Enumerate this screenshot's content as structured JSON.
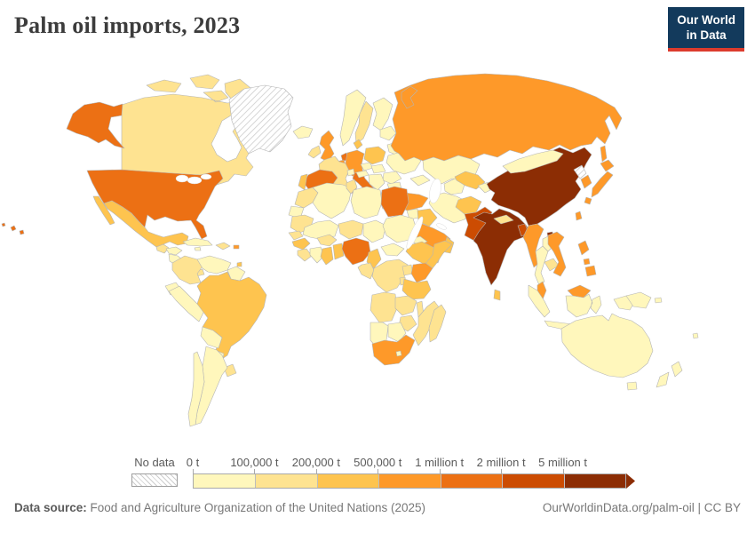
{
  "header": {
    "title": "Palm oil imports, 2023",
    "logo": {
      "line1": "Our World",
      "line2": "in Data",
      "bg": "#133a5c",
      "accent": "#dc3b2d"
    }
  },
  "legend": {
    "no_data_label": "No data",
    "tick_labels": [
      "0 t",
      "100,000 t",
      "200,000 t",
      "500,000 t",
      "1 million t",
      "2 million t",
      "5 million t"
    ],
    "colors": [
      "#fff7bc",
      "#fee391",
      "#fec44f",
      "#fe9929",
      "#ec7014",
      "#cc4c02",
      "#8c2d04"
    ]
  },
  "footer": {
    "source_label": "Data source:",
    "source_text": " Food and Agriculture Organization of the United Nations (2025)",
    "link_text": "OurWorldinData.org/palm-oil | CC BY"
  },
  "chart_data": {
    "type": "heatmap",
    "subtype": "choropleth-world-map",
    "title": "Palm oil imports, 2023",
    "unit": "tonnes",
    "legend_position": "bottom",
    "bins": [
      {
        "range": "0 – 100,000 t",
        "color": "#fff7bc"
      },
      {
        "range": "100,000 – 200,000 t",
        "color": "#fee391"
      },
      {
        "range": "200,000 – 500,000 t",
        "color": "#fec44f"
      },
      {
        "range": "500,000 – 1 million t",
        "color": "#fe9929"
      },
      {
        "range": "1 – 2 million t",
        "color": "#ec7014"
      },
      {
        "range": "2 – 5 million t",
        "color": "#cc4c02"
      },
      {
        "range": "over 5 million t",
        "color": "#8c2d04"
      },
      {
        "range": "No data",
        "color": "hatched"
      }
    ],
    "countries": [
      {
        "id": "greenland",
        "name": "Greenland",
        "bin": "nd"
      },
      {
        "id": "canada",
        "name": "Canada",
        "bin": 1
      },
      {
        "id": "united-states",
        "name": "United States",
        "bin": 4
      },
      {
        "id": "mexico",
        "name": "Mexico",
        "bin": 2
      },
      {
        "id": "guatemala",
        "name": "Guatemala",
        "bin": 1
      },
      {
        "id": "honduras",
        "name": "Honduras",
        "bin": 0
      },
      {
        "id": "nicaragua",
        "name": "Nicaragua",
        "bin": 0
      },
      {
        "id": "costa-rica",
        "name": "Costa Rica",
        "bin": 0
      },
      {
        "id": "panama",
        "name": "Panama",
        "bin": 1
      },
      {
        "id": "cuba",
        "name": "Cuba",
        "bin": 0
      },
      {
        "id": "hispaniola",
        "name": "Haiti & Dominican Republic",
        "bin": 1
      },
      {
        "id": "jamaica",
        "name": "Jamaica",
        "bin": 0
      },
      {
        "id": "puerto-rico",
        "name": "Puerto Rico",
        "bin": 3
      },
      {
        "id": "trinidad",
        "name": "Trinidad & Tobago",
        "bin": 2
      },
      {
        "id": "colombia",
        "name": "Colombia",
        "bin": 1
      },
      {
        "id": "venezuela",
        "name": "Venezuela",
        "bin": 0
      },
      {
        "id": "guyanas",
        "name": "Guyana & Suriname",
        "bin": 0
      },
      {
        "id": "ecuador",
        "name": "Ecuador",
        "bin": 0
      },
      {
        "id": "peru",
        "name": "Peru",
        "bin": 0
      },
      {
        "id": "brazil",
        "name": "Brazil",
        "bin": 2
      },
      {
        "id": "bolivia",
        "name": "Bolivia",
        "bin": 0
      },
      {
        "id": "paraguay",
        "name": "Paraguay",
        "bin": 0
      },
      {
        "id": "uruguay",
        "name": "Uruguay",
        "bin": 1
      },
      {
        "id": "argentina",
        "name": "Argentina",
        "bin": 0
      },
      {
        "id": "chile",
        "name": "Chile",
        "bin": 0
      },
      {
        "id": "iceland",
        "name": "Iceland",
        "bin": 0
      },
      {
        "id": "norway",
        "name": "Norway",
        "bin": 0
      },
      {
        "id": "sweden",
        "name": "Sweden",
        "bin": 1
      },
      {
        "id": "finland",
        "name": "Finland",
        "bin": 0
      },
      {
        "id": "baltic-states",
        "name": "Baltic states",
        "bin": 0
      },
      {
        "id": "denmark",
        "name": "Denmark",
        "bin": 2
      },
      {
        "id": "united-kingdom",
        "name": "United Kingdom",
        "bin": 3
      },
      {
        "id": "ireland",
        "name": "Ireland",
        "bin": 1
      },
      {
        "id": "netherlands",
        "name": "Netherlands",
        "bin": 4
      },
      {
        "id": "belgium",
        "name": "Belgium",
        "bin": 3
      },
      {
        "id": "germany",
        "name": "Germany",
        "bin": 3
      },
      {
        "id": "france",
        "name": "France",
        "bin": 1
      },
      {
        "id": "spain",
        "name": "Spain",
        "bin": 4
      },
      {
        "id": "portugal",
        "name": "Portugal",
        "bin": 2
      },
      {
        "id": "italy",
        "name": "Italy",
        "bin": 4
      },
      {
        "id": "switzerland",
        "name": "Switzerland",
        "bin": 0
      },
      {
        "id": "austria",
        "name": "Austria",
        "bin": 0
      },
      {
        "id": "czechia",
        "name": "Czechia",
        "bin": 0
      },
      {
        "id": "poland",
        "name": "Poland",
        "bin": 2
      },
      {
        "id": "belarus",
        "name": "Belarus",
        "bin": 0
      },
      {
        "id": "ukraine",
        "name": "Ukraine",
        "bin": 0
      },
      {
        "id": "hungary-slovakia",
        "name": "Hungary & Slovakia",
        "bin": 0
      },
      {
        "id": "romania",
        "name": "Romania",
        "bin": 0
      },
      {
        "id": "balkans",
        "name": "Western Balkans",
        "bin": 0
      },
      {
        "id": "bulgaria",
        "name": "Bulgaria",
        "bin": 0
      },
      {
        "id": "greece",
        "name": "Greece",
        "bin": 2
      },
      {
        "id": "russia",
        "name": "Russia",
        "bin": 3
      },
      {
        "id": "kazakhstan",
        "name": "Kazakhstan",
        "bin": 0
      },
      {
        "id": "caucasus",
        "name": "Caucasus states",
        "bin": 0
      },
      {
        "id": "turkey",
        "name": "Turkey",
        "bin": 3
      },
      {
        "id": "syria",
        "name": "Syria",
        "bin": 0
      },
      {
        "id": "iraq",
        "name": "Iraq",
        "bin": 2
      },
      {
        "id": "jordan-israel",
        "name": "Jordan & Israel",
        "bin": 1
      },
      {
        "id": "saudi-arabia",
        "name": "Saudi Arabia",
        "bin": 3
      },
      {
        "id": "yemen",
        "name": "Yemen",
        "bin": 2
      },
      {
        "id": "oman",
        "name": "Oman",
        "bin": 2
      },
      {
        "id": "iran",
        "name": "Iran",
        "bin": 0
      },
      {
        "id": "turkmenistan",
        "name": "Turkmenistan",
        "bin": 0
      },
      {
        "id": "uzbekistan",
        "name": "Uzbekistan",
        "bin": 2
      },
      {
        "id": "kyrgyzstan-tajikistan",
        "name": "Kyrgyzstan & Tajikistan",
        "bin": 0
      },
      {
        "id": "afghanistan",
        "name": "Afghanistan",
        "bin": 2
      },
      {
        "id": "pakistan",
        "name": "Pakistan",
        "bin": 5
      },
      {
        "id": "india",
        "name": "India",
        "bin": 6
      },
      {
        "id": "nepal",
        "name": "Nepal",
        "bin": 1
      },
      {
        "id": "bangladesh",
        "name": "Bangladesh",
        "bin": 5
      },
      {
        "id": "sri-lanka",
        "name": "Sri Lanka",
        "bin": 2
      },
      {
        "id": "china",
        "name": "China",
        "bin": 6
      },
      {
        "id": "mongolia",
        "name": "Mongolia",
        "bin": 0
      },
      {
        "id": "north-korea",
        "name": "North Korea",
        "bin": "nd"
      },
      {
        "id": "south-korea",
        "name": "South Korea",
        "bin": 3
      },
      {
        "id": "japan",
        "name": "Japan",
        "bin": 3
      },
      {
        "id": "taiwan",
        "name": "Taiwan",
        "bin": 3
      },
      {
        "id": "myanmar",
        "name": "Myanmar",
        "bin": 3
      },
      {
        "id": "thailand",
        "name": "Thailand",
        "bin": 0
      },
      {
        "id": "laos",
        "name": "Laos",
        "bin": 0
      },
      {
        "id": "cambodia",
        "name": "Cambodia",
        "bin": 1
      },
      {
        "id": "vietnam",
        "name": "Vietnam",
        "bin": 3
      },
      {
        "id": "malaysia",
        "name": "Malaysia",
        "bin": 3
      },
      {
        "id": "philippines",
        "name": "Philippines",
        "bin": 3
      },
      {
        "id": "indonesia",
        "name": "Indonesia",
        "bin": 0
      },
      {
        "id": "papua-new-guinea",
        "name": "Papua New Guinea",
        "bin": 0
      },
      {
        "id": "australia",
        "name": "Australia",
        "bin": 0
      },
      {
        "id": "new-zealand",
        "name": "New Zealand",
        "bin": 0
      },
      {
        "id": "fiji",
        "name": "Fiji",
        "bin": 0
      },
      {
        "id": "morocco",
        "name": "Morocco",
        "bin": 1
      },
      {
        "id": "western-sahara",
        "name": "Western Sahara",
        "bin": 0
      },
      {
        "id": "algeria",
        "name": "Algeria",
        "bin": 0
      },
      {
        "id": "tunisia",
        "name": "Tunisia",
        "bin": 1
      },
      {
        "id": "libya",
        "name": "Libya",
        "bin": 0
      },
      {
        "id": "egypt",
        "name": "Egypt",
        "bin": 4
      },
      {
        "id": "mauritania",
        "name": "Mauritania",
        "bin": 1
      },
      {
        "id": "mali",
        "name": "Mali",
        "bin": 0
      },
      {
        "id": "niger",
        "name": "Niger",
        "bin": 1
      },
      {
        "id": "chad",
        "name": "Chad",
        "bin": 0
      },
      {
        "id": "sudan",
        "name": "Sudan",
        "bin": 0
      },
      {
        "id": "eritrea",
        "name": "Eritrea",
        "bin": 0
      },
      {
        "id": "djibouti",
        "name": "Djibouti",
        "bin": 3
      },
      {
        "id": "ethiopia",
        "name": "Ethiopia",
        "bin": 2
      },
      {
        "id": "somalia",
        "name": "Somalia",
        "bin": 2
      },
      {
        "id": "senegal",
        "name": "Senegal",
        "bin": 1
      },
      {
        "id": "guinea",
        "name": "Guinea",
        "bin": 2
      },
      {
        "id": "sierra-leone-liberia",
        "name": "Sierra Leone & Liberia",
        "bin": 1
      },
      {
        "id": "ivory-coast",
        "name": "Côte d'Ivoire",
        "bin": 0
      },
      {
        "id": "burkina-faso",
        "name": "Burkina Faso",
        "bin": 1
      },
      {
        "id": "ghana",
        "name": "Ghana",
        "bin": 2
      },
      {
        "id": "togo-benin",
        "name": "Togo & Benin",
        "bin": 2
      },
      {
        "id": "nigeria",
        "name": "Nigeria",
        "bin": 4
      },
      {
        "id": "cameroon",
        "name": "Cameroon",
        "bin": 2
      },
      {
        "id": "central-african-republic",
        "name": "Central African Republic",
        "bin": 0
      },
      {
        "id": "congo-gabon",
        "name": "Congo & Gabon",
        "bin": 1
      },
      {
        "id": "drc",
        "name": "Democratic Republic of Congo",
        "bin": 1
      },
      {
        "id": "uganda",
        "name": "Uganda",
        "bin": 1
      },
      {
        "id": "kenya",
        "name": "Kenya",
        "bin": 3
      },
      {
        "id": "rwanda-burundi",
        "name": "Rwanda & Burundi",
        "bin": 1
      },
      {
        "id": "tanzania",
        "name": "Tanzania",
        "bin": 2
      },
      {
        "id": "angola",
        "name": "Angola",
        "bin": 1
      },
      {
        "id": "zambia",
        "name": "Zambia",
        "bin": 1
      },
      {
        "id": "malawi",
        "name": "Malawi",
        "bin": 1
      },
      {
        "id": "mozambique",
        "name": "Mozambique",
        "bin": 1
      },
      {
        "id": "zimbabwe",
        "name": "Zimbabwe",
        "bin": 1
      },
      {
        "id": "botswana",
        "name": "Botswana",
        "bin": 0
      },
      {
        "id": "namibia",
        "name": "Namibia",
        "bin": 0
      },
      {
        "id": "south-africa",
        "name": "South Africa",
        "bin": 3
      },
      {
        "id": "lesotho",
        "name": "Lesotho",
        "bin": 0
      },
      {
        "id": "madagascar",
        "name": "Madagascar",
        "bin": 1
      }
    ]
  }
}
